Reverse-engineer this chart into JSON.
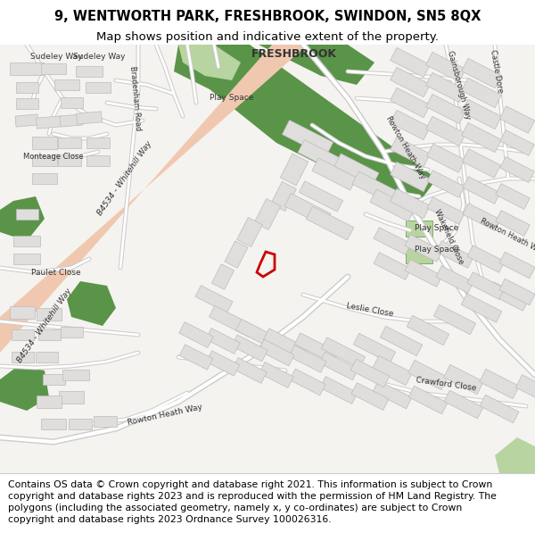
{
  "title_line1": "9, WENTWORTH PARK, FRESHBROOK, SWINDON, SN5 8QX",
  "title_line2": "Map shows position and indicative extent of the property.",
  "footer_text": "Contains OS data © Crown copyright and database right 2021. This information is subject to Crown copyright and database rights 2023 and is reproduced with the permission of HM Land Registry. The polygons (including the associated geometry, namely x, y co-ordinates) are subject to Crown copyright and database rights 2023 Ordnance Survey 100026316.",
  "title_fontsize": 10.5,
  "subtitle_fontsize": 9.5,
  "footer_fontsize": 7.8,
  "map_bg": "#f5f3f0",
  "header_bg": "#ffffff",
  "footer_bg": "#ffffff",
  "road_main_color": "#f0c8b0",
  "road_secondary_color": "#ffffff",
  "road_outline_color": "#d0c0b0",
  "green_light": "#b8d4a0",
  "green_dark": "#5a9448",
  "building_fill": "#e0dedd",
  "building_edge": "#bbbbbb",
  "text_color": "#333333",
  "red_poly_color": "#cc0000",
  "header_border": "#cccccc",
  "footer_border": "#cccccc"
}
